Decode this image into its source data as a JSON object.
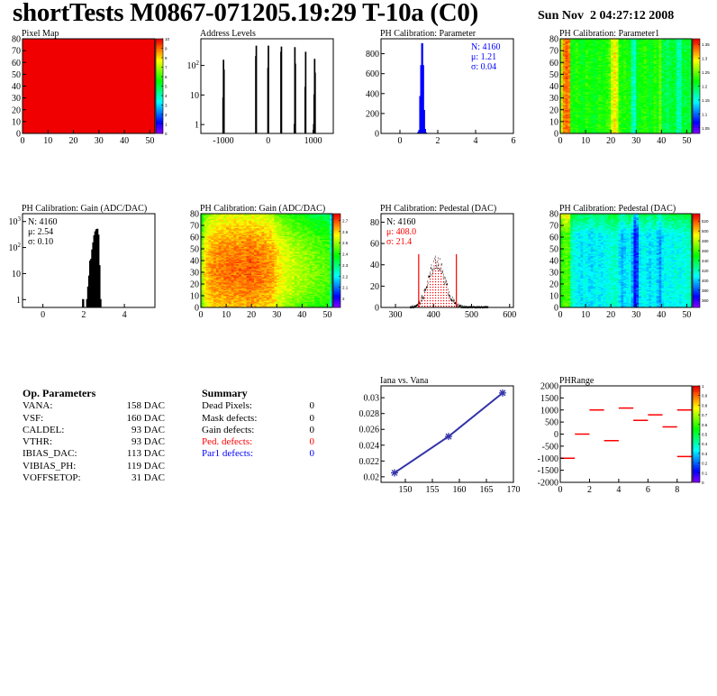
{
  "header": {
    "title": "shortTests M0867-071205.19:29 T-10a (C0)",
    "date": "Sun Nov  2 04:27:12 2008"
  },
  "chart_data": [
    {
      "title": "Pixel Map",
      "type": "heatmap",
      "xlim": [
        0,
        52
      ],
      "ylim": [
        0,
        80
      ],
      "xticks": [
        0,
        10,
        20,
        30,
        40,
        50
      ],
      "yticks": [
        0,
        10,
        20,
        30,
        40,
        50,
        60,
        70,
        80
      ],
      "zlim": [
        0,
        10
      ],
      "zticks": [
        0,
        1,
        2,
        3,
        4,
        5,
        6,
        7,
        8,
        9,
        10
      ],
      "uniform_value": 10
    },
    {
      "title": "Address Levels",
      "type": "bar",
      "ylog": true,
      "xlim": [
        -1500,
        1450
      ],
      "ylim": [
        0.5,
        800
      ],
      "xticks": [
        -1000,
        0,
        1000
      ],
      "yticks": [
        1,
        10,
        100
      ],
      "bin_width": 10,
      "bins": [
        [
          -1010,
          8
        ],
        [
          -1000,
          150
        ],
        [
          -990,
          70
        ],
        [
          -280,
          200
        ],
        [
          -270,
          450
        ],
        [
          -10,
          80
        ],
        [
          0,
          450
        ],
        [
          280,
          280
        ],
        [
          290,
          420
        ],
        [
          580,
          1
        ],
        [
          590,
          400
        ],
        [
          600,
          110
        ],
        [
          820,
          18
        ],
        [
          830,
          280
        ],
        [
          1010,
          1
        ],
        [
          1020,
          10
        ],
        [
          1030,
          160
        ],
        [
          1040,
          55
        ]
      ]
    },
    {
      "title": "PH Calibration: Parameter",
      "type": "bar",
      "xlim": [
        -1,
        6
      ],
      "ylim": [
        0,
        950
      ],
      "xticks": [
        0,
        2,
        4,
        6
      ],
      "yticks": [
        0,
        200,
        400,
        600,
        800
      ],
      "bin_width": 0.05,
      "color": "#0000ff",
      "bins": [
        [
          0.95,
          10
        ],
        [
          1.0,
          30
        ],
        [
          1.05,
          370
        ],
        [
          1.1,
          680
        ],
        [
          1.15,
          900
        ],
        [
          1.2,
          680
        ],
        [
          1.25,
          230
        ],
        [
          1.3,
          40
        ],
        [
          1.35,
          5
        ]
      ],
      "stats": [
        {
          "text": "N: 4160",
          "color": "#0000ff"
        },
        {
          "text": "μ: 1.21",
          "color": "#0000ff"
        },
        {
          "text": "σ: 0.04",
          "color": "#0000ff"
        }
      ],
      "stats_pos": "top-right"
    },
    {
      "title": "PH Calibration: Parameter1",
      "type": "heatmap",
      "xlim": [
        0,
        52
      ],
      "ylim": [
        0,
        80
      ],
      "xticks": [
        0,
        10,
        20,
        30,
        40,
        50
      ],
      "yticks": [
        0,
        10,
        20,
        30,
        40,
        50,
        60,
        70,
        80
      ],
      "zlim": [
        1.03,
        1.37
      ],
      "zticks": [
        1.05,
        1.1,
        1.15,
        1.2,
        1.25,
        1.3,
        1.35
      ],
      "column_means": [
        1.27,
        1.33,
        1.34,
        1.33,
        1.22,
        1.22,
        1.23,
        1.22,
        1.21,
        1.22,
        1.23,
        1.22,
        1.22,
        1.21,
        1.22,
        1.23,
        1.22,
        1.22,
        1.23,
        1.24,
        1.28,
        1.3,
        1.28,
        1.23,
        1.22,
        1.23,
        1.22,
        1.22,
        1.17,
        1.16,
        1.21,
        1.22,
        1.22,
        1.23,
        1.22,
        1.21,
        1.22,
        1.23,
        1.22,
        1.25,
        1.2,
        1.2,
        1.19,
        1.2,
        1.21,
        1.2,
        1.17,
        1.17,
        1.21,
        1.2,
        1.21,
        1.2
      ]
    },
    {
      "title": "PH Calibration: Gain (ADC/DAC)",
      "type": "bar",
      "ylog": true,
      "xlim": [
        -1,
        5.5
      ],
      "ylim": [
        0.5,
        2000
      ],
      "xticks": [
        0,
        2,
        4
      ],
      "yticks": [
        1,
        10,
        100,
        1000
      ],
      "bin_width": 0.05,
      "color": "#000000",
      "bins": [
        [
          1.95,
          1
        ],
        [
          2.15,
          1
        ],
        [
          2.2,
          3
        ],
        [
          2.25,
          8
        ],
        [
          2.3,
          30
        ],
        [
          2.35,
          35
        ],
        [
          2.4,
          80
        ],
        [
          2.45,
          150
        ],
        [
          2.5,
          280
        ],
        [
          2.55,
          400
        ],
        [
          2.6,
          480
        ],
        [
          2.65,
          500
        ],
        [
          2.7,
          300
        ],
        [
          2.75,
          20
        ],
        [
          2.8,
          1
        ]
      ],
      "stats": [
        {
          "text": "N: 4160",
          "color": "#000000"
        },
        {
          "text": "μ: 2.54",
          "color": "#000000"
        },
        {
          "text": "σ: 0.10",
          "color": "#000000"
        }
      ],
      "stats_pos": "top-left"
    },
    {
      "title": "PH Calibration: Gain (ADC/DAC)",
      "type": "heatmap",
      "xlim": [
        0,
        52
      ],
      "ylim": [
        0,
        80
      ],
      "xticks": [
        0,
        10,
        20,
        30,
        40,
        50
      ],
      "yticks": [
        0,
        10,
        20,
        30,
        40,
        50,
        60,
        70,
        80
      ],
      "zlim": [
        1.92,
        2.76
      ],
      "zticks": [
        2,
        2.1,
        2.2,
        2.3,
        2.4,
        2.5,
        2.6,
        2.7
      ],
      "column_means": [
        2.5,
        2.6,
        2.62,
        2.64,
        2.65,
        2.66,
        2.66,
        2.67,
        2.67,
        2.67,
        2.68,
        2.68,
        2.68,
        2.68,
        2.68,
        2.68,
        2.68,
        2.68,
        2.69,
        2.69,
        2.68,
        2.68,
        2.68,
        2.67,
        2.67,
        2.66,
        2.66,
        2.65,
        2.64,
        2.62,
        2.6,
        2.58,
        2.57,
        2.56,
        2.55,
        2.54,
        2.53,
        2.52,
        2.52,
        2.51,
        2.5,
        2.5,
        2.49,
        2.48,
        2.48,
        2.47,
        2.47,
        2.46,
        2.46,
        2.45,
        2.45,
        2.3
      ]
    },
    {
      "title": "PH Calibration: Pedestal (DAC)",
      "type": "histogram",
      "xlim": [
        262,
        610
      ],
      "ylim": [
        0,
        88
      ],
      "xticks": [
        300,
        400,
        500,
        600
      ],
      "yticks": [
        0,
        20,
        40,
        60,
        80
      ],
      "entries": 4160,
      "mean": 408.0,
      "sigma": 21.4,
      "bin_width": 1,
      "cuts": [
        361,
        460
      ],
      "cut_height": 50,
      "cut_color": "#ff0000",
      "stats": [
        {
          "text": "N: 4160",
          "color": "#000000"
        },
        {
          "text": "μ: 408.0",
          "color": "#ff0000"
        },
        {
          "text": "σ: 21.4",
          "color": "#ff0000"
        }
      ],
      "stats_pos": "top-left"
    },
    {
      "title": "PH Calibration: Pedestal (DAC)",
      "type": "heatmap",
      "xlim": [
        0,
        52
      ],
      "ylim": [
        0,
        80
      ],
      "xticks": [
        0,
        10,
        20,
        30,
        40,
        50
      ],
      "yticks": [
        0,
        10,
        20,
        30,
        40,
        50,
        60,
        70,
        80
      ],
      "zlim": [
        345,
        535
      ],
      "zticks": [
        360,
        380,
        400,
        420,
        440,
        460,
        480,
        500,
        520
      ],
      "column_means": [
        455,
        462,
        465,
        460,
        420,
        412,
        410,
        408,
        405,
        410,
        408,
        405,
        402,
        408,
        410,
        406,
        405,
        410,
        412,
        414,
        416,
        418,
        415,
        405,
        395,
        402,
        408,
        410,
        395,
        368,
        378,
        405,
        410,
        412,
        406,
        402,
        408,
        410,
        400,
        392,
        405,
        410,
        412,
        408,
        410,
        414,
        412,
        410,
        412,
        414,
        416,
        418
      ]
    },
    {
      "title": "Iana vs. Vana",
      "type": "line",
      "xlim": [
        145.5,
        170
      ],
      "ylim": [
        0.0193,
        0.0315
      ],
      "xticks": [
        150,
        155,
        160,
        165,
        170
      ],
      "yticks": [
        0.02,
        0.022,
        0.024,
        0.026,
        0.028,
        0.03
      ],
      "x": [
        148,
        158,
        168
      ],
      "y": [
        0.0205,
        0.0251,
        0.0306
      ],
      "color": "#3333aa",
      "marker": "star"
    },
    {
      "title": "PHRange",
      "type": "segments",
      "xlim": [
        0,
        9
      ],
      "ylim": [
        -2000,
        2000
      ],
      "xticks": [
        0,
        2,
        4,
        6,
        8
      ],
      "yticks": [
        -2000,
        -1500,
        -1000,
        -500,
        0,
        500,
        1000,
        1500,
        2000
      ],
      "zlim": [
        0,
        1
      ],
      "zticks": [
        0,
        0.1,
        0.2,
        0.3,
        0.4,
        0.5,
        0.6,
        0.7,
        0.8,
        0.9,
        1
      ],
      "color": "#ff0000",
      "segments": [
        [
          0,
          1,
          -1000
        ],
        [
          1,
          2,
          0
        ],
        [
          2,
          3,
          1000
        ],
        [
          3,
          4,
          -270
        ],
        [
          4,
          5,
          1080
        ],
        [
          5,
          6,
          570
        ],
        [
          6,
          7,
          800
        ],
        [
          7,
          8,
          300
        ],
        [
          8,
          9,
          1000
        ],
        [
          8,
          9,
          -930
        ]
      ]
    }
  ],
  "op_parameters": {
    "title": "Op. Parameters",
    "rows": [
      {
        "name": "VANA:",
        "value": "158 DAC"
      },
      {
        "name": "VSF:",
        "value": "160 DAC"
      },
      {
        "name": "CALDEL:",
        "value": "93 DAC"
      },
      {
        "name": "VTHR:",
        "value": "93 DAC"
      },
      {
        "name": "IBIAS_DAC:",
        "value": "113 DAC"
      },
      {
        "name": "VIBIAS_PH:",
        "value": "119 DAC"
      },
      {
        "name": "VOFFSETOP:",
        "value": "31 DAC"
      }
    ]
  },
  "summary": {
    "title": "Summary",
    "rows": [
      {
        "name": "Dead Pixels:",
        "value": "0",
        "color": "#000000"
      },
      {
        "name": "Mask defects:",
        "value": "0",
        "color": "#000000"
      },
      {
        "name": "Gain defects:",
        "value": "0",
        "color": "#000000"
      },
      {
        "name": "Ped. defects:",
        "value": "0",
        "color": "#ff0000"
      },
      {
        "name": "Par1 defects:",
        "value": "0",
        "color": "#0000ff"
      }
    ]
  }
}
